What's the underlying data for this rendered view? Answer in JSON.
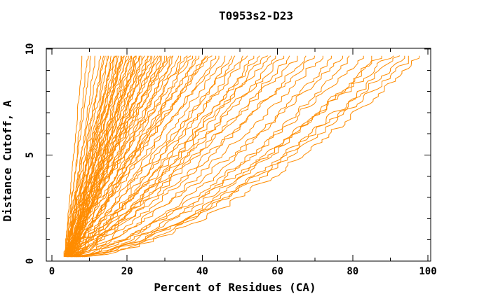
{
  "figure": {
    "background": "#ffffff",
    "text_color": "#000000"
  },
  "chart_data": {
    "type": "line",
    "title": "T0953s2-D23",
    "xlabel": "Percent of Residues (CA)",
    "ylabel": "Distance Cutoff, A",
    "xlim": [
      -1.5,
      100.7
    ],
    "ylim": [
      0,
      10.03
    ],
    "grid": false,
    "legend_position": "none",
    "x_major_ticks": [
      0,
      20,
      40,
      60,
      80,
      100
    ],
    "x_minor_ticks": [
      10,
      30,
      50,
      70,
      90
    ],
    "y_major_ticks": [
      0,
      5,
      10
    ],
    "y_minor_ticks": [
      1,
      2,
      3,
      4,
      6,
      7,
      8,
      9
    ],
    "line_color": "#ff8c00",
    "axis_color": "#000000",
    "curve_y_start": 0.2,
    "curve_y_end": 9.75,
    "curve_step": 0.12,
    "curves_encoding": "per-curve estimated parameters [x_percent_at_bottom, x_percent_at_top, shape_exponent] for each model accuracy curve; x(t)=x0+(xtop-x0)*t^g with small monotonic jitter",
    "curves": [
      [
        3.4,
        8.2,
        1.1
      ],
      [
        3.6,
        9.5,
        1.0
      ],
      [
        3.2,
        10.5,
        1.05
      ],
      [
        3.8,
        11.5,
        0.95
      ],
      [
        3.5,
        13.0,
        1.15
      ],
      [
        4.2,
        13.6,
        1.0
      ],
      [
        3.3,
        14.2,
        1.1
      ],
      [
        5.0,
        14.8,
        0.9
      ],
      [
        3.8,
        15.3,
        1.2
      ],
      [
        4.5,
        15.9,
        0.95
      ],
      [
        3.4,
        16.4,
        1.05
      ],
      [
        5.5,
        17.0,
        1.12
      ],
      [
        4.0,
        17.5,
        0.88
      ],
      [
        3.6,
        18.1,
        1.18
      ],
      [
        4.8,
        18.6,
        1.0
      ],
      [
        3.9,
        19.2,
        1.1
      ],
      [
        5.2,
        19.8,
        0.92
      ],
      [
        3.5,
        20.3,
        1.15
      ],
      [
        4.4,
        20.9,
        1.02
      ],
      [
        3.7,
        21.5,
        0.9
      ],
      [
        5.8,
        22.1,
        1.1
      ],
      [
        4.1,
        22.8,
        0.97
      ],
      [
        3.6,
        23.4,
        1.2
      ],
      [
        4.9,
        24.0,
        0.88
      ],
      [
        3.8,
        24.7,
        1.08
      ],
      [
        5.4,
        25.4,
        1.0
      ],
      [
        4.2,
        26.1,
        1.12
      ],
      [
        3.5,
        26.8,
        0.93
      ],
      [
        4.6,
        27.5,
        1.05
      ],
      [
        5.9,
        28.2,
        1.15
      ],
      [
        3.9,
        29.0,
        0.9
      ],
      [
        4.3,
        29.8,
        1.1
      ],
      [
        3.6,
        30.6,
        0.98
      ],
      [
        5.1,
        31.4,
        1.18
      ],
      [
        4.0,
        32.2,
        0.87
      ],
      [
        3.7,
        33.0,
        1.06
      ],
      [
        4.7,
        33.9,
        1.12
      ],
      [
        5.6,
        34.8,
        0.95
      ],
      [
        3.8,
        35.7,
        1.08
      ],
      [
        4.2,
        36.6,
        0.9
      ],
      [
        3.5,
        37.6,
        1.14
      ],
      [
        5.0,
        38.6,
        1.0
      ],
      [
        4.4,
        39.6,
        1.1
      ],
      [
        3.9,
        40.6,
        0.92
      ],
      [
        4.8,
        41.7,
        1.05
      ],
      [
        3.6,
        42.8,
        1.15
      ],
      [
        5.3,
        43.9,
        0.95
      ],
      [
        4.1,
        45.0,
        1.02
      ],
      [
        4.6,
        16.8,
        1.25
      ],
      [
        3.4,
        19.0,
        1.22
      ],
      [
        4.9,
        21.2,
        1.2
      ],
      [
        3.7,
        23.8,
        1.24
      ],
      [
        5.2,
        26.5,
        1.22
      ],
      [
        4.3,
        28.6,
        1.2
      ],
      [
        3.8,
        31.0,
        1.21
      ],
      [
        4.5,
        24.4,
        1.1
      ],
      [
        3.9,
        18.4,
        0.85
      ],
      [
        4.1,
        22.4,
        0.86
      ],
      [
        4.5,
        46.5,
        0.92
      ],
      [
        5.2,
        48.0,
        0.85
      ],
      [
        3.9,
        49.5,
        0.95
      ],
      [
        6.0,
        51.0,
        0.88
      ],
      [
        4.4,
        52.5,
        0.93
      ],
      [
        5.5,
        54.0,
        0.8
      ],
      [
        4.0,
        55.5,
        0.9
      ],
      [
        6.3,
        57.0,
        0.86
      ],
      [
        4.7,
        58.5,
        0.94
      ],
      [
        5.0,
        60.0,
        0.82
      ],
      [
        4.3,
        62.0,
        0.9
      ],
      [
        6.6,
        64.0,
        0.85
      ],
      [
        4.8,
        66.0,
        0.88
      ],
      [
        5.7,
        68.0,
        0.78
      ],
      [
        4.5,
        70.0,
        0.84
      ],
      [
        5.5,
        72.0,
        0.75
      ],
      [
        6.5,
        75.0,
        0.68
      ],
      [
        5.0,
        78.0,
        0.78
      ],
      [
        7.0,
        80.0,
        0.66
      ],
      [
        5.8,
        83.0,
        0.72
      ],
      [
        6.2,
        86.0,
        0.62
      ],
      [
        7.5,
        88.0,
        0.7
      ],
      [
        5.2,
        90.0,
        0.74
      ],
      [
        8.0,
        92.0,
        0.64
      ],
      [
        6.8,
        94.0,
        0.68
      ],
      [
        7.2,
        96.0,
        0.66
      ],
      [
        8.5,
        98.0,
        0.63
      ]
    ]
  }
}
